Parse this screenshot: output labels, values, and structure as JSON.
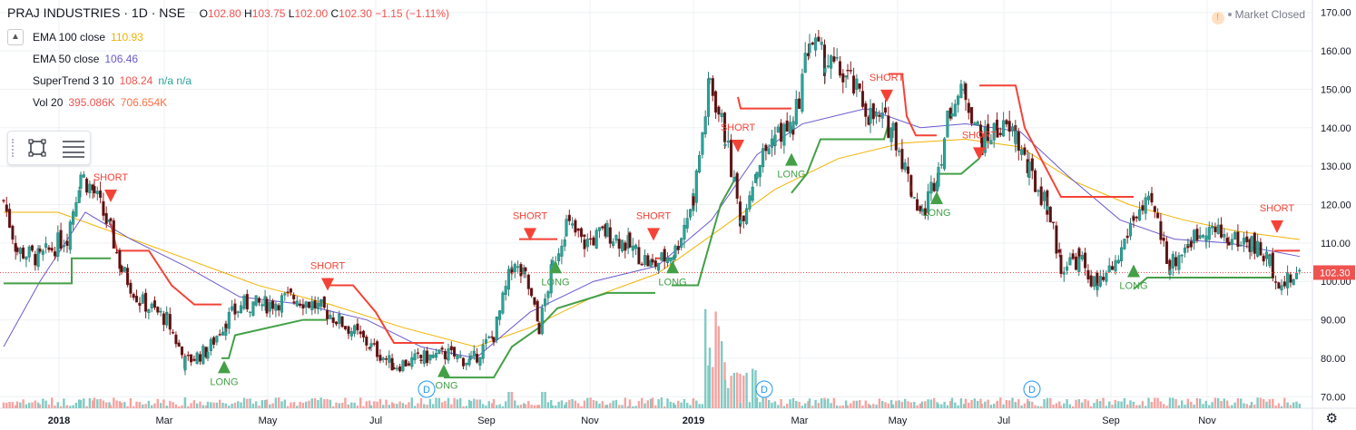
{
  "header": {
    "symbol": "PRAJ INDUSTRIES · 1D · NSE",
    "ohlc": {
      "open_label": "O",
      "open": "102.80",
      "high_label": "H",
      "high": "103.75",
      "low_label": "L",
      "low": "102.00",
      "close_label": "C",
      "close": "102.30",
      "change": "−1.15 (−1.11%)"
    }
  },
  "legend": [
    {
      "name": "EMA 100 close",
      "value": "110.93",
      "color": "#f2b200"
    },
    {
      "name": "EMA 50 close",
      "value": "106.46",
      "color": "#6a5acd"
    },
    {
      "name": "SuperTrend 3 10",
      "value": "108.24",
      "extra": "n/a n/a",
      "color": "#ef5350",
      "extra_color": "#26a69a"
    },
    {
      "name": "Vol 20",
      "value": "395.086K",
      "extra": "706.654K",
      "color": "#ef5350",
      "extra_color": "#ff7043"
    }
  ],
  "status": {
    "text": "Market Closed"
  },
  "price_tag": "102.30",
  "colors": {
    "up": "#26a69a",
    "down": "#ef5350",
    "ema100": "#f2b200",
    "ema50": "#6a5acd",
    "st_up": "#43a047",
    "st_down": "#f44336",
    "grid": "#eef0f3"
  },
  "chart_data": {
    "type": "candlestick",
    "y_ticks": [
      "70.00",
      "80.00",
      "90.00",
      "100.00",
      "110.00",
      "120.00",
      "130.00",
      "140.00",
      "150.00",
      "160.00",
      "170.00"
    ],
    "ylim": [
      67,
      173
    ],
    "x_ticks": [
      "2018",
      "Mar",
      "May",
      "Jul",
      "Sep",
      "Nov",
      "2019",
      "Mar",
      "May",
      "Jul",
      "Sep",
      "Nov"
    ],
    "price_series": [
      {
        "t": 0,
        "c": 121
      },
      {
        "t": 15,
        "c": 108
      },
      {
        "t": 40,
        "c": 106
      },
      {
        "t": 70,
        "c": 112
      },
      {
        "t": 85,
        "c": 128
      },
      {
        "t": 100,
        "c": 123
      },
      {
        "t": 118,
        "c": 113
      },
      {
        "t": 130,
        "c": 103
      },
      {
        "t": 150,
        "c": 95
      },
      {
        "t": 180,
        "c": 90
      },
      {
        "t": 200,
        "c": 79
      },
      {
        "t": 225,
        "c": 82
      },
      {
        "t": 245,
        "c": 90
      },
      {
        "t": 265,
        "c": 94
      },
      {
        "t": 290,
        "c": 94
      },
      {
        "t": 320,
        "c": 96
      },
      {
        "t": 350,
        "c": 93
      },
      {
        "t": 380,
        "c": 88
      },
      {
        "t": 405,
        "c": 83
      },
      {
        "t": 430,
        "c": 78
      },
      {
        "t": 460,
        "c": 80
      },
      {
        "t": 490,
        "c": 81
      },
      {
        "t": 515,
        "c": 79
      },
      {
        "t": 540,
        "c": 86
      },
      {
        "t": 560,
        "c": 104
      },
      {
        "t": 575,
        "c": 101
      },
      {
        "t": 590,
        "c": 88
      },
      {
        "t": 605,
        "c": 104
      },
      {
        "t": 620,
        "c": 115
      },
      {
        "t": 640,
        "c": 110
      },
      {
        "t": 665,
        "c": 113
      },
      {
        "t": 690,
        "c": 109
      },
      {
        "t": 715,
        "c": 104
      },
      {
        "t": 740,
        "c": 108
      },
      {
        "t": 760,
        "c": 122
      },
      {
        "t": 778,
        "c": 152
      },
      {
        "t": 795,
        "c": 138
      },
      {
        "t": 812,
        "c": 116
      },
      {
        "t": 830,
        "c": 130
      },
      {
        "t": 850,
        "c": 138
      },
      {
        "t": 870,
        "c": 140
      },
      {
        "t": 888,
        "c": 163
      },
      {
        "t": 905,
        "c": 157
      },
      {
        "t": 930,
        "c": 153
      },
      {
        "t": 955,
        "c": 143
      },
      {
        "t": 980,
        "c": 140
      },
      {
        "t": 1000,
        "c": 124
      },
      {
        "t": 1012,
        "c": 117
      },
      {
        "t": 1030,
        "c": 130
      },
      {
        "t": 1045,
        "c": 147
      },
      {
        "t": 1060,
        "c": 149
      },
      {
        "t": 1078,
        "c": 136
      },
      {
        "t": 1095,
        "c": 140
      },
      {
        "t": 1115,
        "c": 138
      },
      {
        "t": 1130,
        "c": 128
      },
      {
        "t": 1150,
        "c": 120
      },
      {
        "t": 1165,
        "c": 104
      },
      {
        "t": 1185,
        "c": 106
      },
      {
        "t": 1205,
        "c": 98
      },
      {
        "t": 1225,
        "c": 104
      },
      {
        "t": 1245,
        "c": 117
      },
      {
        "t": 1265,
        "c": 120
      },
      {
        "t": 1285,
        "c": 104
      },
      {
        "t": 1305,
        "c": 110
      },
      {
        "t": 1325,
        "c": 114
      },
      {
        "t": 1350,
        "c": 111
      },
      {
        "t": 1375,
        "c": 110
      },
      {
        "t": 1395,
        "c": 105
      },
      {
        "t": 1408,
        "c": 99
      },
      {
        "t": 1428,
        "c": 102
      }
    ],
    "ema100": [
      [
        0,
        118
      ],
      [
        60,
        118
      ],
      [
        130,
        112
      ],
      [
        200,
        106
      ],
      [
        280,
        99
      ],
      [
        360,
        94
      ],
      [
        440,
        88
      ],
      [
        520,
        83
      ],
      [
        580,
        88
      ],
      [
        650,
        96
      ],
      [
        720,
        102
      ],
      [
        780,
        112
      ],
      [
        850,
        124
      ],
      [
        920,
        132
      ],
      [
        990,
        136
      ],
      [
        1060,
        137
      ],
      [
        1120,
        135
      ],
      [
        1180,
        126
      ],
      [
        1240,
        120
      ],
      [
        1300,
        116
      ],
      [
        1360,
        113
      ],
      [
        1428,
        110.9
      ]
    ],
    "ema50": [
      [
        0,
        83
      ],
      [
        40,
        100
      ],
      [
        90,
        118
      ],
      [
        140,
        111
      ],
      [
        200,
        104
      ],
      [
        260,
        96
      ],
      [
        330,
        94
      ],
      [
        400,
        90
      ],
      [
        460,
        83
      ],
      [
        520,
        80
      ],
      [
        580,
        92
      ],
      [
        650,
        100
      ],
      [
        720,
        104
      ],
      [
        780,
        116
      ],
      [
        830,
        133
      ],
      [
        880,
        141
      ],
      [
        950,
        145
      ],
      [
        1010,
        140
      ],
      [
        1060,
        141
      ],
      [
        1120,
        139
      ],
      [
        1170,
        128
      ],
      [
        1230,
        116
      ],
      [
        1290,
        111
      ],
      [
        1350,
        110
      ],
      [
        1428,
        106.5
      ]
    ],
    "supertrend_segments": [
      {
        "trend": "up",
        "pts": [
          [
            0,
            99.5
          ],
          [
            75,
            99.5
          ],
          [
            75,
            106
          ],
          [
            118,
            106
          ]
        ]
      },
      {
        "trend": "down",
        "pts": [
          [
            118,
            115
          ],
          [
            125,
            108
          ],
          [
            160,
            108
          ],
          [
            185,
            99
          ],
          [
            210,
            94
          ],
          [
            240,
            94
          ]
        ]
      },
      {
        "trend": "up",
        "pts": [
          [
            240,
            80
          ],
          [
            248,
            80
          ],
          [
            255,
            86
          ],
          [
            330,
            90
          ],
          [
            357,
            90
          ]
        ]
      },
      {
        "trend": "down",
        "pts": [
          [
            357,
            99
          ],
          [
            385,
            99
          ],
          [
            410,
            92
          ],
          [
            430,
            84
          ],
          [
            485,
            84
          ]
        ]
      },
      {
        "trend": "up",
        "pts": [
          [
            485,
            75
          ],
          [
            540,
            75
          ],
          [
            560,
            83
          ],
          [
            590,
            88
          ],
          [
            610,
            93
          ],
          [
            665,
            97
          ],
          [
            718,
            97
          ]
        ]
      },
      {
        "trend": "down",
        "pts": [
          [
            568,
            111
          ],
          [
            610,
            111
          ]
        ]
      },
      {
        "trend": "down",
        "pts": [
          [
            718,
            106
          ],
          [
            736,
            106
          ]
        ]
      },
      {
        "trend": "up",
        "pts": [
          [
            736,
            99
          ],
          [
            765,
            99
          ],
          [
            790,
            120
          ],
          [
            809,
            128
          ]
        ]
      },
      {
        "trend": "down",
        "pts": [
          [
            809,
            148
          ],
          [
            812,
            145
          ],
          [
            868,
            145
          ]
        ]
      },
      {
        "trend": "up",
        "pts": [
          [
            868,
            123
          ],
          [
            885,
            128
          ],
          [
            900,
            137
          ],
          [
            970,
            137
          ],
          [
            975,
            141
          ]
        ]
      },
      {
        "trend": "down",
        "pts": [
          [
            975,
            154
          ],
          [
            990,
            154
          ],
          [
            995,
            143
          ],
          [
            1005,
            138
          ],
          [
            1028,
            138
          ]
        ]
      },
      {
        "trend": "up",
        "pts": [
          [
            1028,
            128
          ],
          [
            1055,
            128
          ],
          [
            1075,
            132
          ]
        ]
      },
      {
        "trend": "down",
        "pts": [
          [
            1075,
            151
          ],
          [
            1115,
            151
          ],
          [
            1125,
            140
          ],
          [
            1165,
            122
          ],
          [
            1245,
            122
          ]
        ]
      },
      {
        "trend": "up",
        "pts": [
          [
            1245,
            98
          ],
          [
            1260,
            101
          ],
          [
            1400,
            101
          ]
        ]
      },
      {
        "trend": "down",
        "pts": [
          [
            1400,
            108
          ],
          [
            1428,
            108
          ]
        ]
      }
    ],
    "signals": [
      {
        "type": "SHORT",
        "t": 118,
        "price": 122
      },
      {
        "type": "LONG",
        "t": 243,
        "price": 78
      },
      {
        "type": "SHORT",
        "t": 357,
        "price": 99
      },
      {
        "type": "LONG",
        "t": 485,
        "price": 77
      },
      {
        "type": "SHORT",
        "t": 580,
        "price": 112
      },
      {
        "type": "LONG",
        "t": 608,
        "price": 104
      },
      {
        "type": "SHORT",
        "t": 716,
        "price": 112
      },
      {
        "type": "LONG",
        "t": 737,
        "price": 104
      },
      {
        "type": "SHORT",
        "t": 809,
        "price": 135
      },
      {
        "type": "LONG",
        "t": 868,
        "price": 132
      },
      {
        "type": "SHORT",
        "t": 973,
        "price": 148
      },
      {
        "type": "LONG",
        "t": 1028,
        "price": 122
      },
      {
        "type": "SHORT",
        "t": 1075,
        "price": 133
      },
      {
        "type": "LONG",
        "t": 1245,
        "price": 103
      },
      {
        "type": "SHORT",
        "t": 1403,
        "price": 114
      }
    ],
    "events": [
      {
        "label": "D",
        "t": 466
      },
      {
        "label": "D",
        "t": 838
      },
      {
        "label": "D",
        "t": 1133
      }
    ]
  }
}
